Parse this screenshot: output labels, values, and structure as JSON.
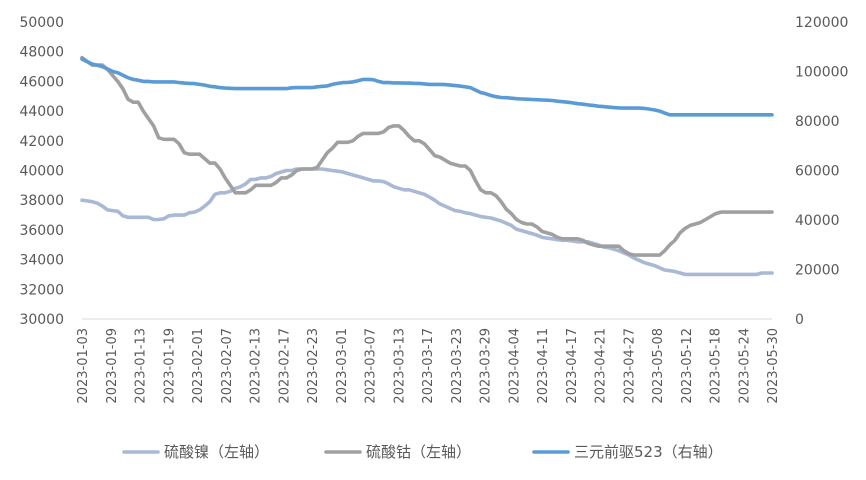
{
  "chart_data": {
    "type": "line",
    "x_tick_labels": [
      "2023-01-03",
      "2023-01-09",
      "2023-01-13",
      "2023-01-19",
      "2023-02-01",
      "2023-02-07",
      "2023-02-13",
      "2023-02-17",
      "2023-02-23",
      "2023-03-01",
      "2023-03-07",
      "2023-03-13",
      "2023-03-17",
      "2023-03-23",
      "2023-03-29",
      "2023-04-04",
      "2023-04-11",
      "2023-04-17",
      "2023-04-21",
      "2023-04-27",
      "2023-05-08",
      "2023-05-12",
      "2023-05-18",
      "2023-05-24",
      "2023-05-30"
    ],
    "left_axis": {
      "ylim": [
        30000,
        50000
      ],
      "ticks": [
        "30000",
        "32000",
        "34000",
        "36000",
        "38000",
        "40000",
        "42000",
        "44000",
        "46000",
        "48000",
        "50000"
      ]
    },
    "right_axis": {
      "ylim": [
        0,
        120000
      ],
      "ticks": [
        "0",
        "20000",
        "40000",
        "60000",
        "80000",
        "100000",
        "120000"
      ]
    },
    "legend_position": "bottom",
    "series": [
      {
        "name": "硫酸镍（左轴）",
        "axis": "left",
        "color": "#A9B8D5",
        "values": [
          38000,
          37950,
          37900,
          37800,
          37600,
          37350,
          37300,
          37250,
          36950,
          36850,
          36850,
          36850,
          36850,
          36850,
          36700,
          36700,
          36750,
          36950,
          37000,
          37000,
          37000,
          37150,
          37200,
          37350,
          37600,
          37900,
          38400,
          38500,
          38500,
          38600,
          38800,
          38900,
          39100,
          39400,
          39400,
          39500,
          39500,
          39600,
          39800,
          39900,
          40000,
          40000,
          40100,
          40100,
          40100,
          40100,
          40100,
          40100,
          40050,
          40000,
          39950,
          39900,
          39800,
          39700,
          39600,
          39500,
          39400,
          39300,
          39300,
          39250,
          39100,
          38900,
          38800,
          38700,
          38700,
          38600,
          38500,
          38400,
          38200,
          38000,
          37750,
          37600,
          37450,
          37300,
          37250,
          37150,
          37100,
          37000,
          36900,
          36850,
          36800,
          36700,
          36600,
          36450,
          36300,
          36050,
          35950,
          35850,
          35750,
          35650,
          35500,
          35450,
          35400,
          35350,
          35300,
          35300,
          35250,
          35200,
          35200,
          35200,
          35100,
          35000,
          34850,
          34800,
          34700,
          34600,
          34450,
          34300,
          34100,
          33950,
          33800,
          33700,
          33600,
          33450,
          33300,
          33250,
          33200,
          33100,
          33000,
          33000,
          33000,
          33000,
          33000,
          33000,
          33000,
          33000,
          33000,
          33000,
          33000,
          33000,
          33000,
          33000,
          33000,
          33100,
          33100,
          33100
        ]
      },
      {
        "name": "硫酸钴（左轴）",
        "axis": "left",
        "color": "#A0A0A0",
        "values": [
          47600,
          47350,
          47100,
          47100,
          47100,
          46800,
          46400,
          46000,
          45500,
          44800,
          44600,
          44600,
          44000,
          43500,
          43000,
          42200,
          42100,
          42100,
          42100,
          41800,
          41200,
          41100,
          41100,
          41100,
          40800,
          40500,
          40500,
          40100,
          39500,
          39000,
          38500,
          38500,
          38500,
          38700,
          39000,
          39000,
          39000,
          39000,
          39200,
          39500,
          39500,
          39700,
          40000,
          40100,
          40100,
          40100,
          40200,
          40700,
          41200,
          41500,
          41900,
          41900,
          41900,
          42000,
          42300,
          42500,
          42500,
          42500,
          42500,
          42600,
          42900,
          43000,
          43000,
          42700,
          42300,
          42000,
          42000,
          41800,
          41400,
          41000,
          40900,
          40700,
          40500,
          40400,
          40300,
          40300,
          40000,
          39300,
          38700,
          38500,
          38500,
          38300,
          37900,
          37400,
          37100,
          36700,
          36500,
          36400,
          36400,
          36200,
          35900,
          35800,
          35700,
          35500,
          35400,
          35400,
          35400,
          35400,
          35300,
          35100,
          35000,
          34900,
          34900,
          34900,
          34900,
          34900,
          34600,
          34400,
          34300,
          34300,
          34300,
          34300,
          34300,
          34300,
          34600,
          35000,
          35300,
          35800,
          36100,
          36300,
          36400,
          36500,
          36700,
          36900,
          37100,
          37200,
          37200,
          37200,
          37200,
          37200,
          37200,
          37200,
          37200,
          37200,
          37200,
          37200
        ]
      },
      {
        "name": "三元前驱523（右轴）",
        "axis": "right",
        "color": "#5B9BD5",
        "values": [
          105000,
          104000,
          103000,
          102500,
          102000,
          101000,
          100000,
          99500,
          98500,
          97500,
          96800,
          96500,
          96000,
          96000,
          95800,
          95800,
          95800,
          95800,
          95800,
          95500,
          95300,
          95200,
          95100,
          94800,
          94500,
          94000,
          93800,
          93500,
          93300,
          93200,
          93100,
          93100,
          93100,
          93100,
          93100,
          93100,
          93100,
          93100,
          93100,
          93100,
          93100,
          93400,
          93500,
          93500,
          93500,
          93500,
          93800,
          94000,
          94200,
          94800,
          95200,
          95500,
          95600,
          95800,
          96300,
          96800,
          96800,
          96700,
          96000,
          95500,
          95500,
          95400,
          95400,
          95300,
          95300,
          95200,
          95200,
          95000,
          94800,
          94800,
          94800,
          94700,
          94500,
          94300,
          94100,
          93800,
          93500,
          92500,
          91500,
          91000,
          90300,
          89800,
          89500,
          89400,
          89200,
          89000,
          88900,
          88800,
          88700,
          88600,
          88500,
          88400,
          88300,
          88000,
          87800,
          87600,
          87300,
          87000,
          86800,
          86500,
          86300,
          86000,
          85800,
          85600,
          85400,
          85300,
          85200,
          85200,
          85200,
          85200,
          85100,
          84800,
          84500,
          84000,
          83200,
          82500,
          82500,
          82500,
          82500,
          82500,
          82500,
          82500,
          82500,
          82500,
          82500,
          82500,
          82500,
          82500,
          82500,
          82500,
          82500,
          82500,
          82500,
          82500,
          82500,
          82500
        ]
      }
    ]
  }
}
